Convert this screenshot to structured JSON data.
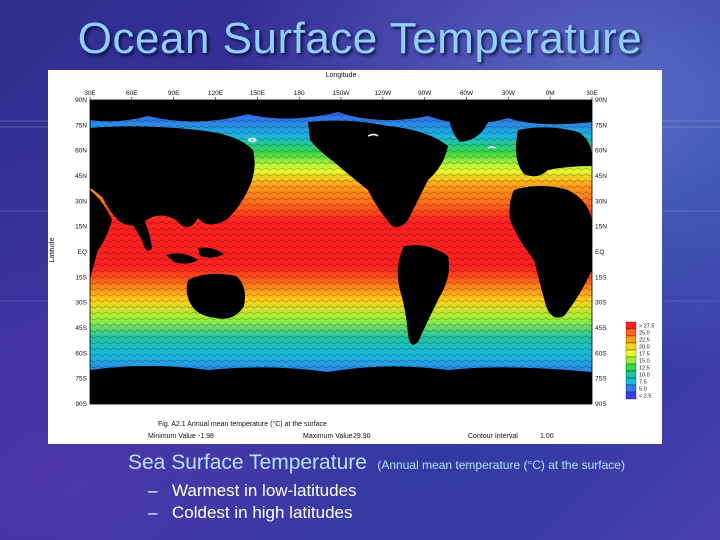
{
  "slide": {
    "title": "Ocean Surface Temperature",
    "caption_main": "Sea Surface Temperature",
    "caption_sub": "(Annual mean temperature (°C) at the surface)",
    "bullets": [
      {
        "dash": "–",
        "text": "Warmest in low-latitudes"
      },
      {
        "dash": "–",
        "text": "Coldest in high latitudes"
      }
    ]
  },
  "figure": {
    "top_label": "Longitude",
    "y_label": "Latitude",
    "lon_ticks": [
      "30E",
      "60E",
      "90E",
      "120E",
      "150E",
      "180",
      "150W",
      "120W",
      "90W",
      "60W",
      "30W",
      "0M",
      "30E"
    ],
    "lat_ticks_left": [
      "90N",
      "75N",
      "60N",
      "45N",
      "30N",
      "15N",
      "EQ",
      "15S",
      "30S",
      "45S",
      "60S",
      "75S",
      "90S"
    ],
    "lat_ticks_right": [
      "90N",
      "75N",
      "60N",
      "45N",
      "30N",
      "15N",
      "EQ",
      "15S",
      "30S",
      "45S",
      "60S",
      "75S",
      "90S"
    ],
    "caption_line": "Fig. A2.1   Annual mean temperature (°C) at the surface",
    "min_label": "Minimum Value",
    "min_value": "-1.98",
    "max_label": "Maximum Value",
    "max_value": "29.90",
    "contour_label": "Contour Interval",
    "contour_value": "1.00"
  },
  "legend": {
    "colors": [
      "#ff2020",
      "#ff6a1a",
      "#ffa01a",
      "#ffd21a",
      "#e8ff30",
      "#9cf23a",
      "#34d84a",
      "#22c4a0",
      "#1ab8e0",
      "#2f7fe8",
      "#3c3cf0"
    ],
    "labels": [
      "> 27.5",
      "25.0",
      "22.5",
      "20.0",
      "17.5",
      "15.0",
      "12.5",
      "10.0",
      "7.5",
      "5.0",
      "< 2.5"
    ]
  }
}
